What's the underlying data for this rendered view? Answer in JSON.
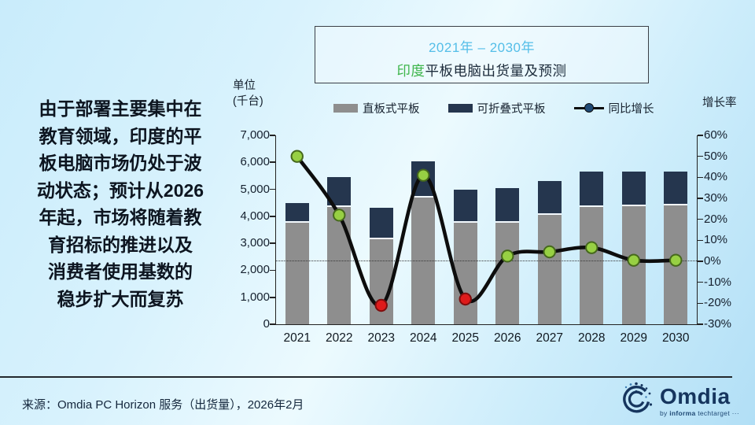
{
  "slide": {
    "title_line1": "2021年 – 2030年",
    "title_line2_highlight": "印度",
    "title_line2_rest": "平板电脑出货量及预测",
    "left_text_lines": [
      "由于部署主要集中在",
      "教育领域，印度的平",
      "板电脑市场仍处于波",
      "动状态；预计从2026",
      "年起，市场将随着教",
      "育招标的推进以及",
      "消费者使用基数的",
      "稳步扩大而复苏"
    ],
    "source": "来源：Omdia PC Horizon 服务（出货量），2026年2月",
    "logo": {
      "text": "Omdia",
      "byline_prefix": "by ",
      "byline_bold": "informa",
      "byline_suffix": " techtarget ···"
    }
  },
  "axis": {
    "left_unit_line1": "单位",
    "left_unit_line2": "(千台)",
    "right_unit": "增长率"
  },
  "colors": {
    "bar_straight": "#8e8e8e",
    "bar_foldable": "#25364e",
    "segment_divider": "#f3f9fd",
    "line": "#0d0d0d",
    "legend_line_dot": "#1f4975",
    "title_blue": "#54bee8",
    "title_green": "#3db54a"
  },
  "chart_data": {
    "type": "bar",
    "subtype": "stacked-bars-with-growth-line",
    "title": "2021年 – 2030年 印度平板电脑出货量及预测",
    "categories": [
      "2021",
      "2022",
      "2023",
      "2024",
      "2025",
      "2026",
      "2027",
      "2028",
      "2029",
      "2030"
    ],
    "series": [
      {
        "name": "直板式平板",
        "role": "bar",
        "color": "#8e8e8e",
        "values": [
          3750,
          4350,
          3150,
          4700,
          3750,
          3770,
          4050,
          4350,
          4380,
          4400
        ]
      },
      {
        "name": "可折叠式平板",
        "role": "bar",
        "color": "#25364e",
        "values": [
          730,
          1100,
          1180,
          1350,
          1225,
          1280,
          1250,
          1300,
          1290,
          1270
        ]
      },
      {
        "name": "同比增长",
        "role": "line",
        "axis": "right",
        "unit": "%",
        "color": "#0d0d0d",
        "values": [
          50,
          22,
          -21,
          41,
          -18,
          2.5,
          4.5,
          6.5,
          0.5,
          0.5
        ],
        "point_colors": [
          "#97d043",
          "#97d043",
          "#de1b1b",
          "#97d043",
          "#de1b1b",
          "#97d043",
          "#97d043",
          "#97d043",
          "#97d043",
          "#97d043"
        ],
        "point_stroke_colors": [
          "#46691c",
          "#46691c",
          "#7e0d0d",
          "#46691c",
          "#7e0d0d",
          "#46691c",
          "#46691c",
          "#46691c",
          "#46691c",
          "#46691c"
        ]
      }
    ],
    "ylabel": "单位（千台）",
    "y2label": "增长率",
    "ylim": [
      0,
      7000
    ],
    "y2lim": [
      -30,
      60
    ],
    "left_ticks": [
      "7,000",
      "6,000",
      "5,000",
      "4,000",
      "3,000",
      "2,000",
      "1,000",
      "0"
    ],
    "right_ticks": [
      "60%",
      "50%",
      "40%",
      "30%",
      "20%",
      "10%",
      "0%",
      "-10%",
      "-20%",
      "-30%"
    ],
    "legend_position": "top",
    "grid": "zero-line-only"
  }
}
